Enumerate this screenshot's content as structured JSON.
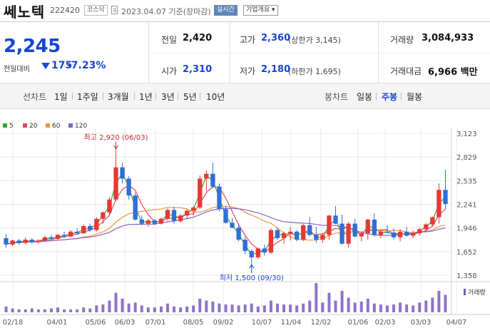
{
  "header": {
    "name": "쎄노텍",
    "code": "222420",
    "market": "코스닥",
    "asof": "2023.04.07  기준(장마감)",
    "realtime_label": "실시간",
    "overview_label": "기업개요 ▾"
  },
  "quote": {
    "price": "2,245",
    "change_label": "전일대비",
    "change": "175",
    "change_pct": "-7.23%",
    "prev_close_label": "전일",
    "prev_close": "2,420",
    "open_label": "시가",
    "open": "2,310",
    "high_label": "고가",
    "high": "2,360",
    "upper_limit": "(상한가 3,145)",
    "low_label": "저가",
    "low": "2,180",
    "lower_limit": "(하한가 1,695)",
    "volume_label": "거래량",
    "volume": "3,084,933",
    "amount_label": "거래대금",
    "amount": "6,966 백만"
  },
  "controls": {
    "line_label": "선차트",
    "periods": [
      "1일",
      "1주일",
      "3개월",
      "1년",
      "3년",
      "5년",
      "10년"
    ],
    "candle_label": "봉차트",
    "candle_types": [
      "일봉",
      "주봉",
      "월봉"
    ],
    "selected_candle": "주봉"
  },
  "colors": {
    "up": "#e53935",
    "down": "#2f6fd6",
    "ma5": "#3aa53a",
    "ma20": "#e24b5b",
    "ma60": "#e89a3a",
    "ma120": "#8b5fc7",
    "volume": "#7a5ac0",
    "grid": "#e8e8e8",
    "text_blue": "#1546d4"
  },
  "chart_data": {
    "type": "candlestick",
    "legend": [
      {
        "name": "5",
        "color_key": "ma5"
      },
      {
        "name": "20",
        "color_key": "ma20"
      },
      {
        "name": "60",
        "color_key": "ma60"
      },
      {
        "name": "120",
        "color_key": "ma120"
      }
    ],
    "y_ticks": [
      3123,
      2829,
      2535,
      2241,
      1946,
      1652,
      1358
    ],
    "y_tick_labels": [
      "3,123",
      "2,829",
      "2,535",
      "2,241",
      "1,946",
      "1,652",
      "1,358"
    ],
    "ylim": [
      1358,
      3123
    ],
    "x_tick_labels": [
      "02/18",
      "04/01",
      "05/06",
      "06/03",
      "07/01",
      "08/05",
      "09/02",
      "10/07",
      "11/04",
      "12/02",
      "01/06",
      "02/03",
      "03/03",
      "04/07"
    ],
    "max_annotation": "최고 2,920 (06/03)",
    "min_annotation": "최저 1,500 (09/30)",
    "volume_label": "거래량",
    "candles": [
      [
        1820,
        1870,
        1700,
        1740
      ],
      [
        1740,
        1800,
        1720,
        1790
      ],
      [
        1790,
        1810,
        1740,
        1760
      ],
      [
        1760,
        1830,
        1740,
        1800
      ],
      [
        1800,
        1820,
        1750,
        1770
      ],
      [
        1770,
        1810,
        1750,
        1790
      ],
      [
        1790,
        1850,
        1770,
        1830
      ],
      [
        1830,
        1860,
        1790,
        1810
      ],
      [
        1810,
        1870,
        1800,
        1860
      ],
      [
        1860,
        1900,
        1820,
        1840
      ],
      [
        1840,
        1920,
        1830,
        1900
      ],
      [
        1900,
        1940,
        1860,
        1880
      ],
      [
        1880,
        1990,
        1870,
        1970
      ],
      [
        1970,
        2000,
        1900,
        1920
      ],
      [
        1920,
        2080,
        1900,
        2060
      ],
      [
        2060,
        2150,
        2000,
        2140
      ],
      [
        2140,
        2330,
        2100,
        2300
      ],
      [
        2300,
        2920,
        2280,
        2700
      ],
      [
        2700,
        2760,
        2500,
        2560
      ],
      [
        2560,
        2590,
        2300,
        2350
      ],
      [
        2350,
        2390,
        2040,
        2050
      ],
      [
        2050,
        2100,
        1980,
        2000
      ],
      [
        2000,
        2060,
        1960,
        2040
      ],
      [
        2040,
        2060,
        1980,
        2000
      ],
      [
        2000,
        2080,
        1990,
        2060
      ],
      [
        2060,
        2190,
        2040,
        2170
      ],
      [
        2170,
        2210,
        2000,
        2030
      ],
      [
        2030,
        2120,
        2010,
        2100
      ],
      [
        2100,
        2180,
        2060,
        2160
      ],
      [
        2160,
        2220,
        2100,
        2200
      ],
      [
        2200,
        2600,
        2180,
        2560
      ],
      [
        2560,
        2660,
        2400,
        2620
      ],
      [
        2620,
        2760,
        2440,
        2460
      ],
      [
        2460,
        2500,
        2150,
        2180
      ],
      [
        2180,
        2220,
        2000,
        2010
      ],
      [
        2010,
        2070,
        1940,
        1950
      ],
      [
        1950,
        2000,
        1780,
        1800
      ],
      [
        1800,
        1840,
        1620,
        1660
      ],
      [
        1660,
        1680,
        1500,
        1580
      ],
      [
        1580,
        1700,
        1560,
        1690
      ],
      [
        1690,
        1740,
        1600,
        1640
      ],
      [
        1640,
        1940,
        1620,
        1920
      ],
      [
        1920,
        1950,
        1800,
        1820
      ],
      [
        1820,
        1900,
        1750,
        1880
      ],
      [
        1880,
        1960,
        1790,
        1900
      ],
      [
        1900,
        1920,
        1780,
        1800
      ],
      [
        1800,
        2000,
        1780,
        1980
      ],
      [
        1980,
        2080,
        1840,
        1860
      ],
      [
        1860,
        1960,
        1760,
        1800
      ],
      [
        1800,
        1880,
        1760,
        1860
      ],
      [
        1860,
        2110,
        1800,
        2100
      ],
      [
        2100,
        2220,
        1990,
        2000
      ],
      [
        2000,
        2110,
        1740,
        1750
      ],
      [
        1750,
        2020,
        1700,
        2000
      ],
      [
        2000,
        2060,
        1830,
        1840
      ],
      [
        1840,
        1900,
        1780,
        1880
      ],
      [
        1880,
        2060,
        1800,
        2050
      ],
      [
        2050,
        2130,
        1840,
        1860
      ],
      [
        1860,
        1930,
        1820,
        1900
      ],
      [
        1900,
        1980,
        1870,
        1890
      ],
      [
        1890,
        1940,
        1800,
        1830
      ],
      [
        1830,
        1930,
        1780,
        1900
      ],
      [
        1900,
        1960,
        1840,
        1850
      ],
      [
        1850,
        1920,
        1820,
        1880
      ],
      [
        1880,
        1950,
        1850,
        1930
      ],
      [
        1930,
        2010,
        1900,
        1990
      ],
      [
        1990,
        2090,
        1960,
        2080
      ],
      [
        2080,
        2500,
        2000,
        2420
      ],
      [
        2420,
        2670,
        2180,
        2245
      ]
    ],
    "volumes": [
      6,
      4,
      3,
      3,
      4,
      3,
      3,
      4,
      5,
      3,
      3,
      3,
      5,
      4,
      7,
      8,
      12,
      20,
      14,
      9,
      10,
      7,
      5,
      5,
      6,
      9,
      6,
      5,
      6,
      7,
      14,
      12,
      11,
      9,
      8,
      8,
      7,
      8,
      9,
      6,
      7,
      12,
      9,
      8,
      8,
      7,
      9,
      12,
      30,
      10,
      20,
      12,
      22,
      15,
      10,
      11,
      14,
      9,
      8,
      7,
      8,
      10,
      8,
      7,
      10,
      12,
      15,
      22,
      18
    ]
  }
}
